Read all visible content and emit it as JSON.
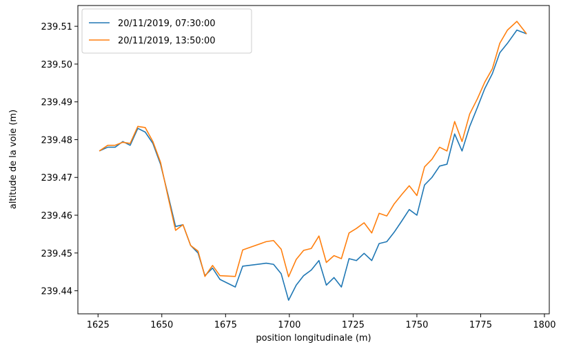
{
  "chart_data": {
    "type": "line",
    "xlabel": "position longitudinale (m)",
    "ylabel": "altitude de la voie (m)",
    "x": [
      1625.5,
      1628.8,
      1631.7,
      1634.7,
      1637.6,
      1640.6,
      1643.5,
      1646.5,
      1649.5,
      1652.4,
      1655.4,
      1658.3,
      1661.3,
      1664.2,
      1666.9,
      1669.9,
      1672.8,
      1678.8,
      1681.7,
      1690.9,
      1693.8,
      1696.8,
      1699.7,
      1702.7,
      1705.6,
      1708.6,
      1711.6,
      1714.5,
      1717.5,
      1720.4,
      1723.4,
      1726.3,
      1729.3,
      1732.3,
      1735.2,
      1738.2,
      1741.1,
      1744.1,
      1747.0,
      1750.0,
      1753.0,
      1755.9,
      1758.9,
      1761.8,
      1764.8,
      1767.7,
      1770.7,
      1773.7,
      1776.6,
      1779.6,
      1782.5,
      1785.5,
      1789.2,
      1793.0
    ],
    "series": [
      {
        "name": "20/11/2019, 07:30:00",
        "color": "#1f77b4",
        "values": [
          239.477,
          239.478,
          239.478,
          239.4795,
          239.4785,
          239.483,
          239.482,
          239.479,
          239.4735,
          239.4655,
          239.457,
          239.4575,
          239.452,
          239.45,
          239.444,
          239.446,
          239.443,
          239.441,
          239.4465,
          239.4473,
          239.447,
          239.4445,
          239.4375,
          239.4415,
          239.444,
          239.4455,
          239.448,
          239.4415,
          239.4435,
          239.441,
          239.4485,
          239.448,
          239.4499,
          239.448,
          239.4525,
          239.453,
          239.4555,
          239.4585,
          239.4615,
          239.46,
          239.468,
          239.47,
          239.473,
          239.4735,
          239.4815,
          239.477,
          239.4835,
          239.4885,
          239.4935,
          239.4975,
          239.503,
          239.5055,
          239.509,
          239.508
        ]
      },
      {
        "name": "20/11/2019, 13:50:00",
        "color": "#ff7f0e",
        "values": [
          239.477,
          239.4785,
          239.4785,
          239.4793,
          239.479,
          239.4835,
          239.4832,
          239.4795,
          239.474,
          239.465,
          239.456,
          239.4575,
          239.452,
          239.4505,
          239.4438,
          239.4467,
          239.444,
          239.4438,
          239.4508,
          239.453,
          239.4533,
          239.451,
          239.4437,
          239.4483,
          239.4507,
          239.4512,
          239.4545,
          239.4475,
          239.4493,
          239.4485,
          239.4553,
          239.4565,
          239.458,
          239.4553,
          239.4605,
          239.4598,
          239.463,
          239.4655,
          239.4678,
          239.4652,
          239.4728,
          239.4748,
          239.478,
          239.477,
          239.4848,
          239.4795,
          239.4868,
          239.4908,
          239.4952,
          239.4988,
          239.5055,
          239.509,
          239.5113,
          239.508
        ]
      }
    ],
    "xlim": [
      1617.1,
      1801.9
    ],
    "ylim": [
      239.4339,
      239.5155
    ],
    "xticks": [
      1625,
      1650,
      1675,
      1700,
      1725,
      1750,
      1775,
      1800
    ],
    "yticks": [
      239.44,
      239.45,
      239.46,
      239.47,
      239.48,
      239.49,
      {
        "value": 239.5,
        "label": "239.50"
      },
      239.51
    ],
    "legend": "upper-left"
  }
}
